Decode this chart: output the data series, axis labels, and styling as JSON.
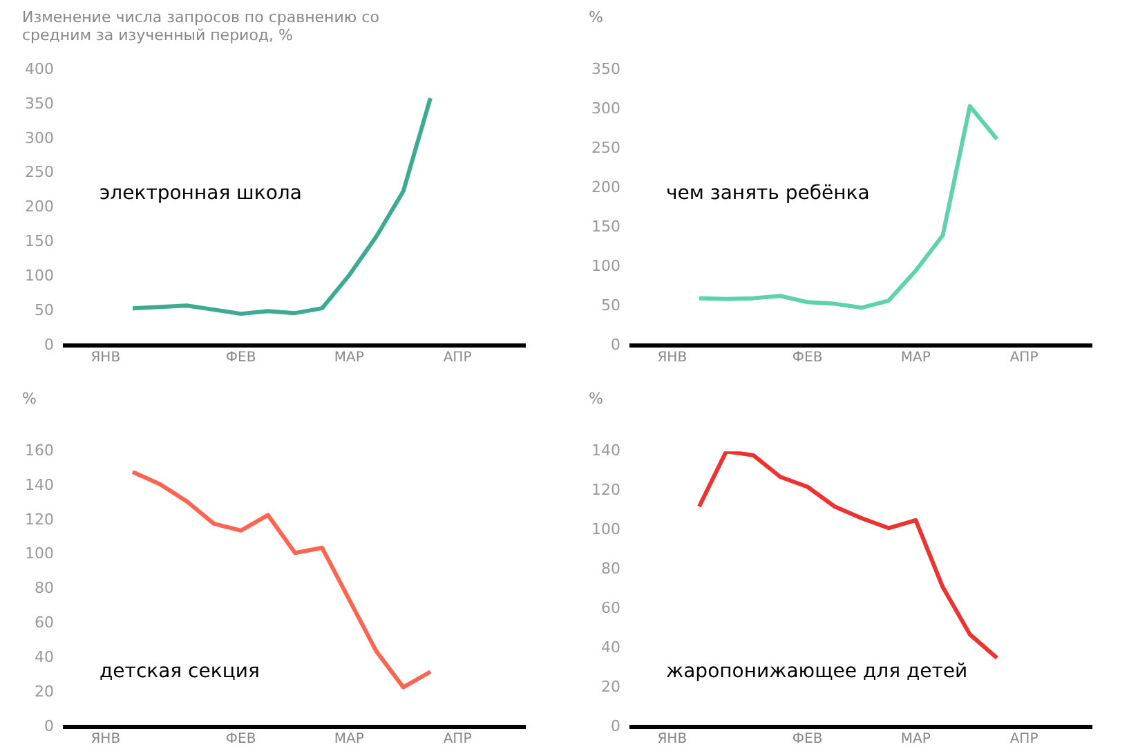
{
  "chart_data": [
    {
      "type": "line",
      "ylabel": "Изменение числа запросов по сравнению со средним за изученный период, %",
      "categories": [
        null,
        "ЯНВ",
        null,
        null,
        null,
        null,
        "ФЕВ",
        null,
        null,
        null,
        "МАР",
        null,
        null,
        null,
        "АПР",
        null,
        null
      ],
      "ylim": [
        0,
        400
      ],
      "yticks": [
        0,
        50,
        100,
        150,
        200,
        250,
        300,
        350,
        400
      ],
      "legend": false,
      "marker": "none",
      "line_style": "solid",
      "series": [
        {
          "name": "электронная школа",
          "color": "#3daa92",
          "values": [
            null,
            null,
            54,
            56,
            58,
            52,
            46,
            50,
            47,
            54,
            102,
            158,
            224,
            359,
            null,
            null,
            null
          ]
        }
      ]
    },
    {
      "type": "line",
      "ylabel": "%",
      "categories": [
        null,
        "ЯНВ",
        null,
        null,
        null,
        null,
        "ФЕВ",
        null,
        null,
        null,
        "МАР",
        null,
        null,
        null,
        "АПР",
        null,
        null
      ],
      "ylim": [
        0,
        350
      ],
      "yticks": [
        0,
        50,
        100,
        150,
        200,
        250,
        300,
        350
      ],
      "legend": false,
      "marker": "none",
      "line_style": "solid",
      "series": [
        {
          "name": "чем занять ребёнка",
          "color": "#5fd2ad",
          "values": [
            null,
            null,
            60,
            59,
            60,
            63,
            55,
            53,
            48,
            57,
            95,
            140,
            304,
            262,
            null,
            null,
            null
          ]
        }
      ]
    },
    {
      "type": "line",
      "ylabel": "%",
      "categories": [
        null,
        "ЯНВ",
        null,
        null,
        null,
        null,
        "ФЕВ",
        null,
        null,
        null,
        "МАР",
        null,
        null,
        null,
        "АПР",
        null,
        null
      ],
      "ylim": [
        0,
        160
      ],
      "yticks": [
        0,
        20,
        40,
        60,
        80,
        100,
        120,
        140,
        160
      ],
      "legend": false,
      "marker": "none",
      "line_style": "solid",
      "series": [
        {
          "name": "детская секция",
          "color": "#fd6552",
          "values": [
            null,
            null,
            148,
            141,
            131,
            118,
            114,
            123,
            101,
            104,
            74,
            44,
            23,
            32,
            null,
            null,
            null
          ]
        }
      ]
    },
    {
      "type": "line",
      "ylabel": "%",
      "categories": [
        null,
        "ЯНВ",
        null,
        null,
        null,
        null,
        "ФЕВ",
        null,
        null,
        null,
        "МАР",
        null,
        null,
        null,
        "АПР",
        null,
        null
      ],
      "ylim": [
        0,
        140
      ],
      "yticks": [
        0,
        20,
        40,
        60,
        80,
        100,
        120,
        140
      ],
      "legend": false,
      "marker": "none",
      "line_style": "solid",
      "series": [
        {
          "name": "жаропонижающее для детей",
          "color": "#ee3131",
          "values": [
            null,
            null,
            112,
            140,
            138,
            127,
            122,
            112,
            106,
            101,
            105,
            71,
            47,
            35,
            null,
            null,
            null
          ]
        }
      ]
    }
  ]
}
